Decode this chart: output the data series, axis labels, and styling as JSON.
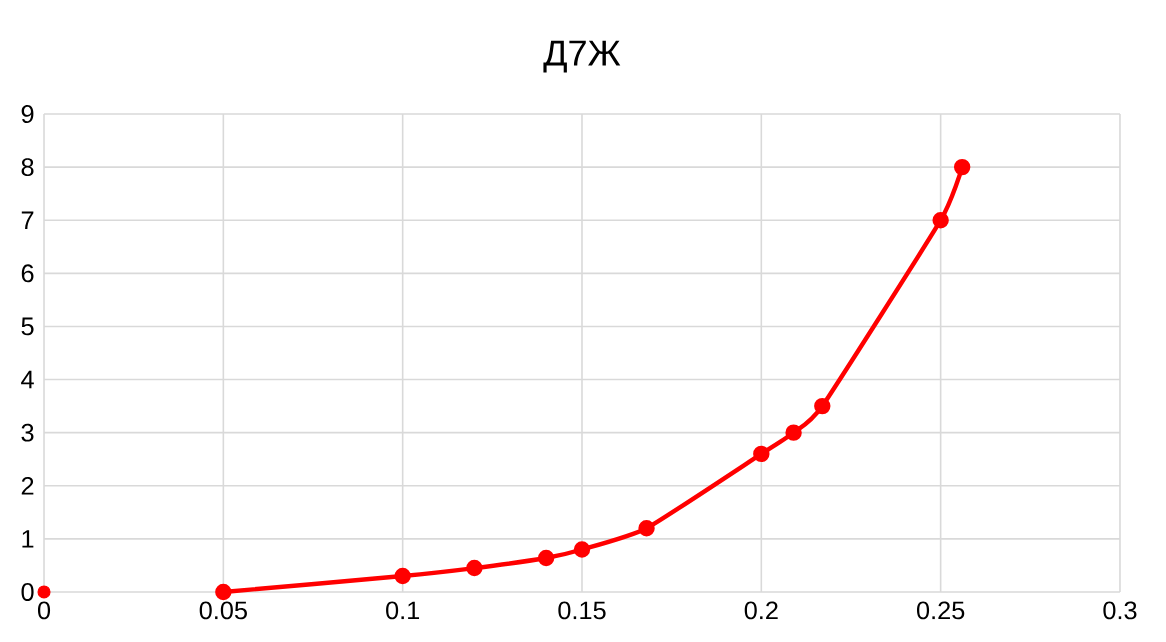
{
  "chart_data": {
    "type": "line",
    "title": "Д7Ж",
    "series": [
      {
        "type": "scatter",
        "color": "#ff0000",
        "x": [
          0
        ],
        "values": [
          0
        ]
      },
      {
        "color": "#ff0000",
        "x": [
          0.05,
          0.1,
          0.12,
          0.14,
          0.15,
          0.168,
          0.2,
          0.209,
          0.217,
          0.25,
          0.256
        ],
        "values": [
          0,
          0.3,
          0.45,
          0.64,
          0.8,
          1.2,
          2.6,
          3.0,
          3.5,
          7.0,
          8.0
        ]
      }
    ],
    "xlim": [
      0,
      0.3
    ],
    "xticks": [
      0,
      0.05,
      0.1,
      0.15,
      0.2,
      0.25,
      0.3
    ],
    "ylim": [
      0,
      9
    ],
    "yticks": [
      0,
      1,
      2,
      3,
      4,
      5,
      6,
      7,
      8,
      9
    ],
    "grid": true,
    "marker": "circle",
    "line_style": "solid"
  }
}
